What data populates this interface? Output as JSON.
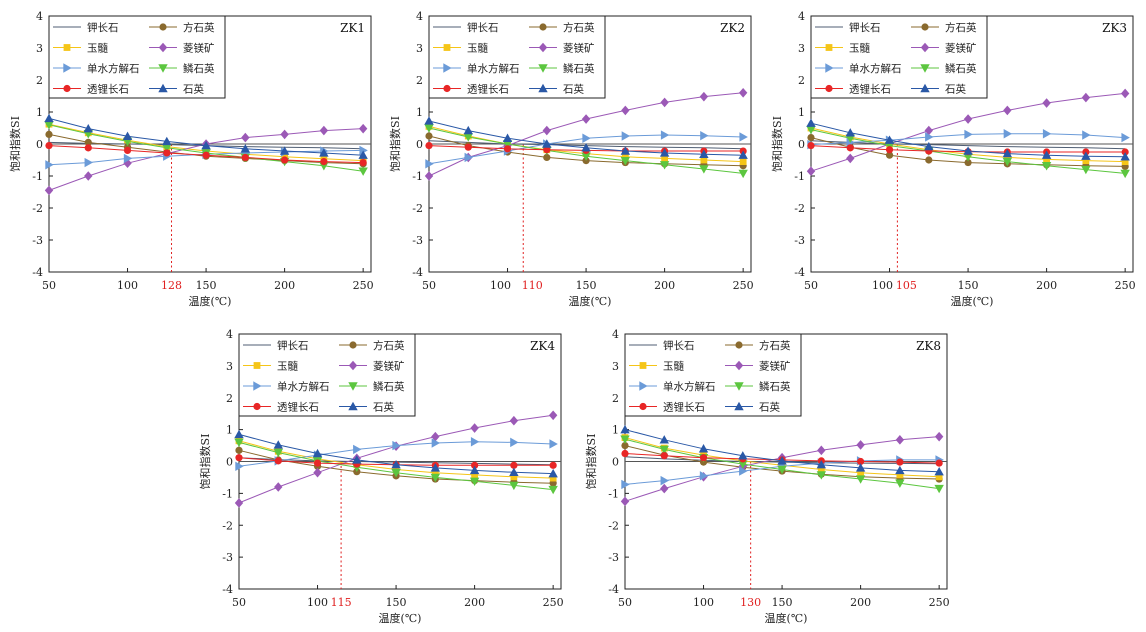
{
  "legend_labels": {
    "kfs": "钾长石",
    "cri": "方石英",
    "chal": "玉髓",
    "mgs": "菱镁矿",
    "anl": "单水方解石",
    "trid": "鳞石英",
    "pet": "透锂长石",
    "qtz": "石英"
  },
  "series_styles": {
    "kfs": {
      "color": "#4f5e73",
      "marker": "none"
    },
    "cri": {
      "color": "#8a6a2e",
      "marker": "circle"
    },
    "chal": {
      "color": "#f5c518",
      "marker": "square"
    },
    "mgs": {
      "color": "#9b59b6",
      "marker": "diamond"
    },
    "anl": {
      "color": "#6b9bd8",
      "marker": "triangle-right"
    },
    "trid": {
      "color": "#5cc63f",
      "marker": "triangle-down"
    },
    "pet": {
      "color": "#e82626",
      "marker": "circle"
    },
    "qtz": {
      "color": "#2a58a6",
      "marker": "triangle-up"
    }
  },
  "chart_data": [
    {
      "type": "line",
      "title": "ZK1",
      "xlabel": "温度(℃)",
      "ylabel": "饱和指数SI",
      "xlim": [
        50,
        255
      ],
      "ylim": [
        -4,
        4
      ],
      "xticks": [
        50,
        100,
        150,
        200,
        250
      ],
      "yticks": [
        -4,
        -3,
        -2,
        -1,
        0,
        1,
        2,
        3,
        4
      ],
      "marker_temperature": 128,
      "marker_label": "128",
      "x": [
        50,
        75,
        100,
        125,
        150,
        175,
        200,
        225,
        250
      ],
      "series": [
        {
          "key": "kfs",
          "values": [
            0.05,
            0.02,
            0.0,
            -0.02,
            -0.05,
            -0.08,
            -0.1,
            -0.12,
            -0.15
          ]
        },
        {
          "key": "cri",
          "values": [
            0.3,
            0.05,
            -0.1,
            -0.25,
            -0.38,
            -0.45,
            -0.52,
            -0.58,
            -0.62
          ]
        },
        {
          "key": "chal",
          "values": [
            0.62,
            0.35,
            0.12,
            -0.08,
            -0.22,
            -0.32,
            -0.4,
            -0.46,
            -0.52
          ]
        },
        {
          "key": "mgs",
          "values": [
            -1.45,
            -1.0,
            -0.6,
            -0.3,
            0.0,
            0.2,
            0.3,
            0.42,
            0.48
          ]
        },
        {
          "key": "anl",
          "values": [
            -0.65,
            -0.58,
            -0.45,
            -0.38,
            -0.32,
            -0.28,
            -0.25,
            -0.22,
            -0.2
          ]
        },
        {
          "key": "trid",
          "values": [
            0.6,
            0.32,
            0.08,
            -0.12,
            -0.28,
            -0.42,
            -0.55,
            -0.68,
            -0.85
          ]
        },
        {
          "key": "pet",
          "values": [
            -0.05,
            -0.12,
            -0.2,
            -0.28,
            -0.35,
            -0.42,
            -0.5,
            -0.55,
            -0.58
          ]
        },
        {
          "key": "qtz",
          "values": [
            0.8,
            0.48,
            0.24,
            0.08,
            -0.05,
            -0.15,
            -0.22,
            -0.28,
            -0.35
          ]
        }
      ]
    },
    {
      "type": "line",
      "title": "ZK2",
      "xlabel": "温度(℃)",
      "ylabel": "饱和指数SI",
      "xlim": [
        50,
        255
      ],
      "ylim": [
        -4,
        4
      ],
      "xticks": [
        50,
        100,
        150,
        200,
        250
      ],
      "yticks": [
        -4,
        -3,
        -2,
        -1,
        0,
        1,
        2,
        3,
        4
      ],
      "marker_temperature": 110,
      "marker_label": "110",
      "x": [
        50,
        75,
        100,
        125,
        150,
        175,
        200,
        225,
        250
      ],
      "series": [
        {
          "key": "kfs",
          "values": [
            0.1,
            0.05,
            0.0,
            -0.02,
            -0.05,
            -0.08,
            -0.1,
            -0.12,
            -0.15
          ]
        },
        {
          "key": "cri",
          "values": [
            0.25,
            -0.05,
            -0.25,
            -0.42,
            -0.52,
            -0.58,
            -0.62,
            -0.65,
            -0.68
          ]
        },
        {
          "key": "chal",
          "values": [
            0.55,
            0.25,
            0.0,
            -0.18,
            -0.3,
            -0.4,
            -0.45,
            -0.5,
            -0.55
          ]
        },
        {
          "key": "mgs",
          "values": [
            -1.0,
            -0.42,
            -0.05,
            0.42,
            0.78,
            1.05,
            1.3,
            1.48,
            1.6
          ]
        },
        {
          "key": "anl",
          "values": [
            -0.62,
            -0.42,
            -0.22,
            0.0,
            0.18,
            0.25,
            0.28,
            0.26,
            0.22
          ]
        },
        {
          "key": "trid",
          "values": [
            0.5,
            0.22,
            0.0,
            -0.2,
            -0.38,
            -0.52,
            -0.65,
            -0.78,
            -0.92
          ]
        },
        {
          "key": "pet",
          "values": [
            -0.05,
            -0.1,
            -0.15,
            -0.18,
            -0.2,
            -0.22,
            -0.22,
            -0.22,
            -0.22
          ]
        },
        {
          "key": "qtz",
          "values": [
            0.72,
            0.42,
            0.18,
            0.0,
            -0.12,
            -0.22,
            -0.28,
            -0.32,
            -0.35
          ]
        }
      ]
    },
    {
      "type": "line",
      "title": "ZK3",
      "xlabel": "温度(℃)",
      "ylabel": "饱和指数SI",
      "xlim": [
        50,
        255
      ],
      "ylim": [
        -4,
        4
      ],
      "xticks": [
        50,
        100,
        150,
        200,
        250
      ],
      "yticks": [
        -4,
        -3,
        -2,
        -1,
        0,
        1,
        2,
        3,
        4
      ],
      "marker_temperature": 105,
      "marker_label": "105",
      "x": [
        50,
        75,
        100,
        125,
        150,
        175,
        200,
        225,
        250
      ],
      "series": [
        {
          "key": "kfs",
          "values": [
            0.1,
            0.05,
            0.0,
            -0.02,
            -0.05,
            -0.08,
            -0.1,
            -0.12,
            -0.15
          ]
        },
        {
          "key": "cri",
          "values": [
            0.2,
            -0.1,
            -0.35,
            -0.5,
            -0.58,
            -0.62,
            -0.65,
            -0.68,
            -0.7
          ]
        },
        {
          "key": "chal",
          "values": [
            0.5,
            0.22,
            0.0,
            -0.18,
            -0.32,
            -0.42,
            -0.48,
            -0.52,
            -0.55
          ]
        },
        {
          "key": "mgs",
          "values": [
            -0.85,
            -0.45,
            0.0,
            0.42,
            0.78,
            1.05,
            1.28,
            1.45,
            1.58
          ]
        },
        {
          "key": "anl",
          "values": [
            -0.02,
            0.05,
            0.12,
            0.22,
            0.3,
            0.32,
            0.32,
            0.28,
            0.2
          ]
        },
        {
          "key": "trid",
          "values": [
            0.45,
            0.18,
            -0.05,
            -0.22,
            -0.4,
            -0.55,
            -0.68,
            -0.8,
            -0.92
          ]
        },
        {
          "key": "pet",
          "values": [
            -0.05,
            -0.12,
            -0.18,
            -0.22,
            -0.24,
            -0.25,
            -0.25,
            -0.25,
            -0.25
          ]
        },
        {
          "key": "qtz",
          "values": [
            0.65,
            0.35,
            0.12,
            -0.08,
            -0.22,
            -0.3,
            -0.35,
            -0.38,
            -0.4
          ]
        }
      ]
    },
    {
      "type": "line",
      "title": "ZK4",
      "xlabel": "温度(℃)",
      "ylabel": "饱和指数SI",
      "xlim": [
        50,
        255
      ],
      "ylim": [
        -4,
        4
      ],
      "xticks": [
        50,
        100,
        150,
        200,
        250
      ],
      "yticks": [
        -4,
        -3,
        -2,
        -1,
        0,
        1,
        2,
        3,
        4
      ],
      "marker_temperature": 115,
      "marker_label": "115",
      "x": [
        50,
        75,
        100,
        125,
        150,
        175,
        200,
        225,
        250
      ],
      "series": [
        {
          "key": "kfs",
          "values": [
            0.12,
            0.06,
            0.02,
            0.0,
            -0.02,
            -0.04,
            -0.06,
            -0.08,
            -0.1
          ]
        },
        {
          "key": "cri",
          "values": [
            0.35,
            0.05,
            -0.15,
            -0.32,
            -0.45,
            -0.55,
            -0.6,
            -0.65,
            -0.68
          ]
        },
        {
          "key": "chal",
          "values": [
            0.65,
            0.32,
            0.08,
            -0.1,
            -0.25,
            -0.35,
            -0.42,
            -0.48,
            -0.52
          ]
        },
        {
          "key": "mgs",
          "values": [
            -1.3,
            -0.8,
            -0.35,
            0.1,
            0.48,
            0.78,
            1.05,
            1.28,
            1.45
          ]
        },
        {
          "key": "anl",
          "values": [
            -0.15,
            0.02,
            0.2,
            0.38,
            0.5,
            0.58,
            0.62,
            0.6,
            0.55
          ]
        },
        {
          "key": "trid",
          "values": [
            0.6,
            0.28,
            0.02,
            -0.18,
            -0.35,
            -0.5,
            -0.62,
            -0.75,
            -0.88
          ]
        },
        {
          "key": "pet",
          "values": [
            0.12,
            0.02,
            -0.05,
            -0.08,
            -0.1,
            -0.12,
            -0.12,
            -0.12,
            -0.12
          ]
        },
        {
          "key": "qtz",
          "values": [
            0.85,
            0.52,
            0.25,
            0.05,
            -0.1,
            -0.2,
            -0.28,
            -0.34,
            -0.38
          ]
        }
      ]
    },
    {
      "type": "line",
      "title": "ZK8",
      "xlabel": "温度(℃)",
      "ylabel": "饱和指数SI",
      "xlim": [
        50,
        255
      ],
      "ylim": [
        -4,
        4
      ],
      "xticks": [
        50,
        100,
        150,
        200,
        250
      ],
      "yticks": [
        -4,
        -3,
        -2,
        -1,
        0,
        1,
        2,
        3,
        4
      ],
      "marker_temperature": 130,
      "marker_label": "130",
      "x": [
        50,
        75,
        100,
        125,
        150,
        175,
        200,
        225,
        250
      ],
      "series": [
        {
          "key": "kfs",
          "values": [
            0.15,
            0.08,
            0.04,
            0.0,
            -0.02,
            -0.04,
            -0.05,
            -0.06,
            -0.07
          ]
        },
        {
          "key": "cri",
          "values": [
            0.5,
            0.2,
            -0.02,
            -0.18,
            -0.3,
            -0.4,
            -0.48,
            -0.52,
            -0.55
          ]
        },
        {
          "key": "chal",
          "values": [
            0.75,
            0.42,
            0.2,
            0.02,
            -0.12,
            -0.25,
            -0.35,
            -0.42,
            -0.48
          ]
        },
        {
          "key": "mgs",
          "values": [
            -1.25,
            -0.85,
            -0.48,
            -0.15,
            0.12,
            0.35,
            0.52,
            0.68,
            0.78
          ]
        },
        {
          "key": "anl",
          "values": [
            -0.72,
            -0.6,
            -0.45,
            -0.3,
            -0.15,
            -0.05,
            0.02,
            0.05,
            0.05
          ]
        },
        {
          "key": "trid",
          "values": [
            0.7,
            0.38,
            0.12,
            -0.08,
            -0.25,
            -0.42,
            -0.55,
            -0.68,
            -0.85
          ]
        },
        {
          "key": "pet",
          "values": [
            0.25,
            0.18,
            0.12,
            0.08,
            0.05,
            0.02,
            0.0,
            -0.02,
            -0.05
          ]
        },
        {
          "key": "qtz",
          "values": [
            1.0,
            0.68,
            0.4,
            0.18,
            0.02,
            -0.1,
            -0.2,
            -0.28,
            -0.32
          ]
        }
      ]
    }
  ]
}
